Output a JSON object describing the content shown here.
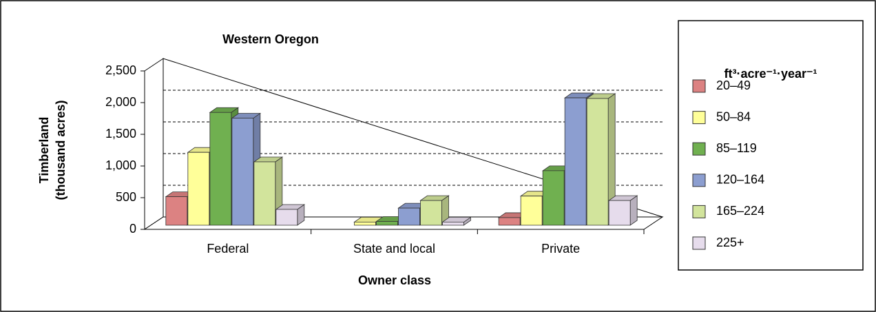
{
  "chart_data": {
    "type": "bar3d",
    "title": "Western Oregon",
    "x_label": "Owner class",
    "y_label": [
      "Timberland",
      "(thousand acres)"
    ],
    "legend_title": "ft³·acre⁻¹·year⁻¹",
    "categories": [
      "Federal",
      "State and local",
      "Private"
    ],
    "series": [
      {
        "name": "20–49",
        "color": "#dc8282",
        "values": [
          450,
          0,
          120
        ]
      },
      {
        "name": "50–84",
        "color": "#ffff99",
        "values": [
          1150,
          50,
          460
        ]
      },
      {
        "name": "85–119",
        "color": "#70b050",
        "values": [
          1780,
          60,
          860
        ]
      },
      {
        "name": "120–164",
        "color": "#8c9ed0",
        "values": [
          1690,
          270,
          2010
        ]
      },
      {
        "name": "165–224",
        "color": "#d2e49c",
        "values": [
          1000,
          390,
          2000
        ]
      },
      {
        "name": "225+",
        "color": "#e6dcec",
        "values": [
          250,
          50,
          390
        ]
      }
    ],
    "ylim": [
      0,
      2500
    ],
    "yticks": [
      0,
      500,
      {
        "value": 1000,
        "label": "1,000"
      },
      {
        "value": 1500,
        "label": "1,500"
      },
      {
        "value": 2000,
        "label": "2,000"
      },
      {
        "value": 2500,
        "label": "2,500"
      }
    ],
    "grid": true,
    "legend": "right"
  }
}
